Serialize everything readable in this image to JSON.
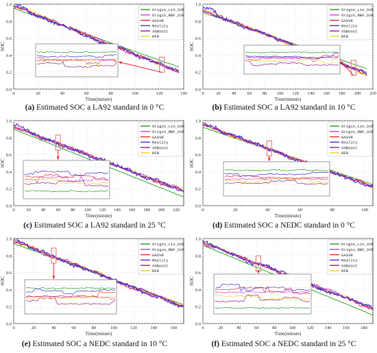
{
  "colors": {
    "Origin_Lin_SVR": "#1a9a1a",
    "Origin_RBF_SVR": "#c23fd0",
    "GASVR": "#e8222a",
    "Reality": "#3a2bd6",
    "XGBoost": "#8f1f80",
    "RFR": "#f0d020",
    "arrow": "#e8222a",
    "highlight": "#f08080"
  },
  "chart_data": [
    {
      "type": "line",
      "caption_letter": "(a)",
      "caption_text": " Estimated SOC a LA92 standard in 0 °C",
      "xlabel": "Time(minute)",
      "ylabel": "SOC",
      "xlim": [
        0,
        140
      ],
      "ylim": [
        0,
        1.0
      ],
      "xticks": [
        0,
        20,
        40,
        60,
        80,
        100,
        120,
        140
      ],
      "yticks": [
        0.0,
        0.2,
        0.4,
        0.6,
        0.8,
        1.0
      ],
      "legend": [
        "Origin_Lin_SVR",
        "Origin_RBF_SVR",
        "GASVR",
        "Reality",
        "XGBoost",
        "RFR"
      ],
      "legend_position": "top-right",
      "start": 0.98,
      "end": 0.2,
      "lin_end": 0.26,
      "final_x": 136,
      "zoom_center_x": 122
    },
    {
      "type": "line",
      "caption_letter": "(b)",
      "caption_text": " Estimated SOC a LA92 standard in 10 °C",
      "xlabel": "Time(minute)",
      "ylabel": "SOC",
      "xlim": [
        0,
        220
      ],
      "ylim": [
        0,
        1.0
      ],
      "xticks": [
        0,
        20,
        40,
        60,
        80,
        100,
        120,
        140,
        160,
        180,
        200,
        220
      ],
      "yticks": [
        0.0,
        0.2,
        0.4,
        0.6,
        0.8,
        1.0
      ],
      "legend": [
        "Origin_Lin_SVR",
        "Origin_RBF_SVR",
        "GASVR",
        "Reality",
        "XGBoost",
        "RFR"
      ],
      "legend_position": "top-right",
      "start": 0.93,
      "end": 0.18,
      "lin_end": 0.24,
      "final_x": 212,
      "zoom_center_x": 195
    },
    {
      "type": "line",
      "caption_letter": "(c)",
      "caption_text": " Estimated SOC a LA92 standard in 25 °C",
      "xlabel": "Time(minute)",
      "ylabel": "SOC",
      "xlim": [
        0,
        230
      ],
      "ylim": [
        0,
        1.0
      ],
      "xticks": [
        0,
        20,
        40,
        60,
        80,
        100,
        120,
        140,
        160,
        180,
        200,
        220
      ],
      "yticks": [
        0.0,
        0.2,
        0.4,
        0.6,
        0.8,
        1.0
      ],
      "legend": [
        "Origin_Lin_SVR",
        "Origin_RBF_SVR",
        "GASVR",
        "Reality",
        "XGBoost",
        "RFR"
      ],
      "legend_position": "top-right",
      "start": 0.93,
      "end": 0.17,
      "lin_end": 0.1,
      "final_x": 230,
      "zoom_center_x": 60
    },
    {
      "type": "line",
      "caption_letter": "(d)",
      "caption_text": " Estimated SOC a NEDC standard in 0 °C",
      "xlabel": "Time(minute)",
      "ylabel": "SOC",
      "xlim": [
        0,
        105
      ],
      "ylim": [
        0,
        1.0
      ],
      "xticks": [
        0,
        20,
        40,
        60,
        80,
        100
      ],
      "yticks": [
        0.0,
        0.2,
        0.4,
        0.6,
        0.8,
        1.0
      ],
      "legend": [
        "Origin_Lin_SVR",
        "Origin_RBF_SVR",
        "GASVR",
        "Reality",
        "XGBoost",
        "RFR"
      ],
      "legend_position": "top-right",
      "start": 0.95,
      "end": 0.22,
      "lin_end": 0.25,
      "final_x": 105,
      "zoom_center_x": 41
    },
    {
      "type": "line",
      "caption_letter": "(e)",
      "caption_text": " Estimated SOC a NEDC standard in 10 °C",
      "xlabel": "Time(minute)",
      "ylabel": "SOC",
      "xlim": [
        0,
        170
      ],
      "ylim": [
        0,
        1.0
      ],
      "xticks": [
        0,
        20,
        40,
        60,
        80,
        100,
        120,
        140,
        160
      ],
      "yticks": [
        0.0,
        0.2,
        0.4,
        0.6,
        0.8,
        1.0
      ],
      "legend": [
        "Origin_Lin_SVR",
        "Origin_RBF_SVR",
        "GASVR",
        "Reality",
        "XGBoost",
        "RFR"
      ],
      "legend_position": "top-right",
      "start": 0.97,
      "end": 0.2,
      "lin_end": 0.22,
      "final_x": 170,
      "zoom_center_x": 40
    },
    {
      "type": "line",
      "caption_letter": "(f)",
      "caption_text": " Estimated SOC a NEDC standard in 25 °C",
      "xlabel": "Time(minute)",
      "ylabel": "SOC",
      "xlim": [
        0,
        190
      ],
      "ylim": [
        0,
        1.0
      ],
      "xticks": [
        0,
        20,
        40,
        60,
        80,
        100,
        120,
        140,
        160,
        180
      ],
      "yticks": [
        0.0,
        0.2,
        0.4,
        0.6,
        0.8,
        1.0
      ],
      "legend": [
        "Origin_Lin_SVR",
        "Origin_RBF_SVR",
        "GASVR",
        "Reality",
        "XGBoost",
        "RFR"
      ],
      "legend_position": "top-right",
      "start": 0.95,
      "end": 0.18,
      "lin_end": 0.1,
      "final_x": 190,
      "zoom_center_x": 62
    }
  ]
}
